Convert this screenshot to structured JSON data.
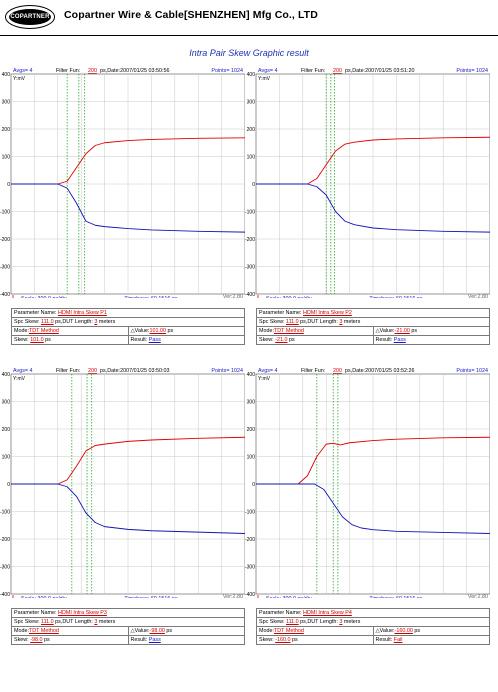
{
  "header": {
    "logo_text": "COPARTNER",
    "company": "Copartner Wire & Cable[SHENZHEN] Mfg Co., LTD"
  },
  "page_title": "Intra Pair Skew Graphic result",
  "colors": {
    "trace_a": "#e00000",
    "trace_b": "#1414b4",
    "marker": "#119a11",
    "title": "#1f2fb8"
  },
  "chart_data": [
    {
      "type": "line",
      "top": {
        "avgs_label": "Avgs= 4",
        "filter_label": "Filter Fun:",
        "filter_value": "200",
        "date_label": "ps,Date:2007/01/25 03:50:56",
        "points_label": "Points= 1024"
      },
      "ylabel": "Y:mV",
      "ylim": [
        -400,
        400
      ],
      "yticks": [
        "400",
        "300",
        "200",
        "100",
        "0",
        "-100",
        "-200",
        "-300",
        "-400"
      ],
      "grid": true,
      "x_divisions": 10,
      "scale_label": "Scale: 300.0 ps/div",
      "timebase_label": "Timebase: 60.1516 ns",
      "ver_label": "Ver:2.80",
      "markers_div": [
        2.4,
        2.9,
        3.15
      ],
      "series": [
        {
          "color": "#e00000",
          "x": [
            0,
            2.0,
            2.4,
            2.8,
            3.2,
            3.6,
            4.0,
            5.0,
            6.0,
            8.0,
            10.0
          ],
          "y": [
            0,
            0,
            10,
            60,
            110,
            140,
            150,
            158,
            162,
            166,
            168
          ]
        },
        {
          "color": "#1414b4",
          "x": [
            0,
            2.0,
            2.4,
            2.8,
            3.2,
            3.6,
            4.0,
            5.0,
            6.0,
            8.0,
            10.0
          ],
          "y": [
            0,
            0,
            -15,
            -70,
            -135,
            -150,
            -155,
            -162,
            -167,
            -172,
            -175
          ]
        }
      ],
      "params": {
        "parameter_label": "Parameter Name:",
        "parameter_value": "HDMI Intra Skew P1",
        "spc_label": "Spc Skew:",
        "spc_value": "111.0",
        "spc_mid": "ps,DUT Length:",
        "length_value": "3",
        "length_unit": "meters",
        "mode_label": "Mode:",
        "mode_value": "TDT Method",
        "dvalue_label": "Value:",
        "dvalue_value": "101.00",
        "dvalue_unit": "ps",
        "skew_label": "Skew:",
        "skew_value": "101.0",
        "skew_unit": "ps",
        "result_label": "Result:",
        "result_value": "Pass"
      }
    },
    {
      "type": "line",
      "top": {
        "avgs_label": "Avgs= 4",
        "filter_label": "Filter Fun:",
        "filter_value": "200",
        "date_label": "ps,Date:2007/01/25 03:51:20",
        "points_label": "Points= 1024"
      },
      "ylabel": "Y:mV",
      "ylim": [
        -400,
        400
      ],
      "yticks": [
        "400",
        "300",
        "200",
        "100",
        "0",
        "-100",
        "-200",
        "-300",
        "-400"
      ],
      "grid": true,
      "x_divisions": 10,
      "scale_label": "Scale: 300.0 ps/div",
      "timebase_label": "Timebase: 60.1516 ns",
      "ver_label": "Ver:2.80",
      "markers_div": [
        3.0,
        3.2,
        3.35
      ],
      "series": [
        {
          "color": "#e00000",
          "x": [
            0,
            2.2,
            2.6,
            3.0,
            3.4,
            3.8,
            4.2,
            5.0,
            6.0,
            8.0,
            10.0
          ],
          "y": [
            0,
            0,
            20,
            70,
            120,
            145,
            152,
            160,
            164,
            168,
            170
          ]
        },
        {
          "color": "#1414b4",
          "x": [
            0,
            2.2,
            2.6,
            3.0,
            3.4,
            3.8,
            4.2,
            5.0,
            6.0,
            8.0,
            10.0
          ],
          "y": [
            0,
            0,
            -10,
            -40,
            -100,
            -135,
            -148,
            -160,
            -166,
            -172,
            -175
          ]
        }
      ],
      "params": {
        "parameter_label": "Parameter Name:",
        "parameter_value": "HDMI Intra Skew P2",
        "spc_label": "Spc Skew:",
        "spc_value": "111.0",
        "spc_mid": "ps,DUT Length:",
        "length_value": "3",
        "length_unit": "meters",
        "mode_label": "Mode:",
        "mode_value": "TDT Method",
        "dvalue_label": "Value:",
        "dvalue_value": "-21.00",
        "dvalue_unit": "ps",
        "skew_label": "Skew:",
        "skew_value": "-21.0",
        "skew_unit": "ps",
        "result_label": "Result:",
        "result_value": "Pass"
      }
    },
    {
      "type": "line",
      "top": {
        "avgs_label": "Avgs= 4",
        "filter_label": "Filter Fun:",
        "filter_value": "200",
        "date_label": "ps,Date:2007/01/25 03:50:03",
        "points_label": "Points= 1024"
      },
      "ylabel": "Y:mV",
      "ylim": [
        -400,
        400
      ],
      "yticks": [
        "400",
        "300",
        "200",
        "100",
        "0",
        "-100",
        "-200",
        "-300",
        "-400"
      ],
      "grid": true,
      "x_divisions": 10,
      "scale_label": "Scale: 300.0 ps/div",
      "timebase_label": "Timebase: 60.1516 ns",
      "ver_label": "Ver:2.80",
      "markers_div": [
        2.6,
        3.25,
        3.45
      ],
      "series": [
        {
          "color": "#e00000",
          "x": [
            0,
            2.0,
            2.4,
            2.8,
            3.2,
            3.6,
            4.0,
            5.0,
            6.0,
            8.0,
            10.0
          ],
          "y": [
            0,
            0,
            15,
            65,
            120,
            140,
            145,
            155,
            160,
            166,
            170
          ]
        },
        {
          "color": "#1414b4",
          "x": [
            0,
            2.0,
            2.4,
            2.8,
            3.2,
            3.6,
            4.0,
            5.0,
            6.0,
            8.0,
            10.0
          ],
          "y": [
            0,
            0,
            -10,
            -45,
            -105,
            -140,
            -155,
            -165,
            -170,
            -175,
            -180
          ]
        }
      ],
      "params": {
        "parameter_label": "Parameter Name:",
        "parameter_value": "HDMI Intra Skew P3",
        "spc_label": "Spc Skew:",
        "spc_value": "111.0",
        "spc_mid": "ps,DUT Length:",
        "length_value": "3",
        "length_unit": "meters",
        "mode_label": "Mode:",
        "mode_value": "TDT Method",
        "dvalue_label": "Value:",
        "dvalue_value": "-98.00",
        "dvalue_unit": "ps",
        "skew_label": "Skew:",
        "skew_value": "-98.0",
        "skew_unit": "ps",
        "result_label": "Result:",
        "result_value": "Pass"
      }
    },
    {
      "type": "line",
      "top": {
        "avgs_label": "Avgs= 4",
        "filter_label": "Filter Fun:",
        "filter_value": "200",
        "date_label": "ps,Date:2007/01/25 03:52:26",
        "points_label": "Points= 1024"
      },
      "ylabel": "Y:mV",
      "ylim": [
        -400,
        400
      ],
      "yticks": [
        "400",
        "300",
        "200",
        "100",
        "0",
        "-100",
        "-200",
        "-300",
        "-400"
      ],
      "grid": true,
      "x_divisions": 10,
      "scale_label": "Scale: 300.0 ps/div",
      "timebase_label": "Timebase: 60.1516 ns",
      "ver_label": "Ver:2.80",
      "markers_div": [
        2.6,
        3.3,
        3.5
      ],
      "series": [
        {
          "color": "#e00000",
          "x": [
            0,
            1.8,
            2.2,
            2.6,
            3.0,
            3.3,
            3.6,
            4.0,
            5.0,
            6.0,
            8.0,
            10.0
          ],
          "y": [
            0,
            0,
            30,
            100,
            145,
            148,
            142,
            150,
            158,
            163,
            168,
            170
          ]
        },
        {
          "color": "#1414b4",
          "x": [
            0,
            2.5,
            2.9,
            3.3,
            3.7,
            4.1,
            4.5,
            5.0,
            6.0,
            8.0,
            10.0
          ],
          "y": [
            0,
            0,
            -20,
            -70,
            -120,
            -148,
            -160,
            -166,
            -172,
            -176,
            -180
          ]
        }
      ],
      "params": {
        "parameter_label": "Parameter Name:",
        "parameter_value": "HDMI Intra Skew P4",
        "spc_label": "Spc Skew:",
        "spc_value": "111.0",
        "spc_mid": "ps,DUT Length:",
        "length_value": "3",
        "length_unit": "meters",
        "mode_label": "Mode:",
        "mode_value": "TDT Method",
        "dvalue_label": "Value:",
        "dvalue_value": "-160.00",
        "dvalue_unit": "ps",
        "skew_label": "Skew:",
        "skew_value": "-160.0",
        "skew_unit": "ps",
        "result_label": "Result:",
        "result_value": "Fail"
      }
    }
  ]
}
